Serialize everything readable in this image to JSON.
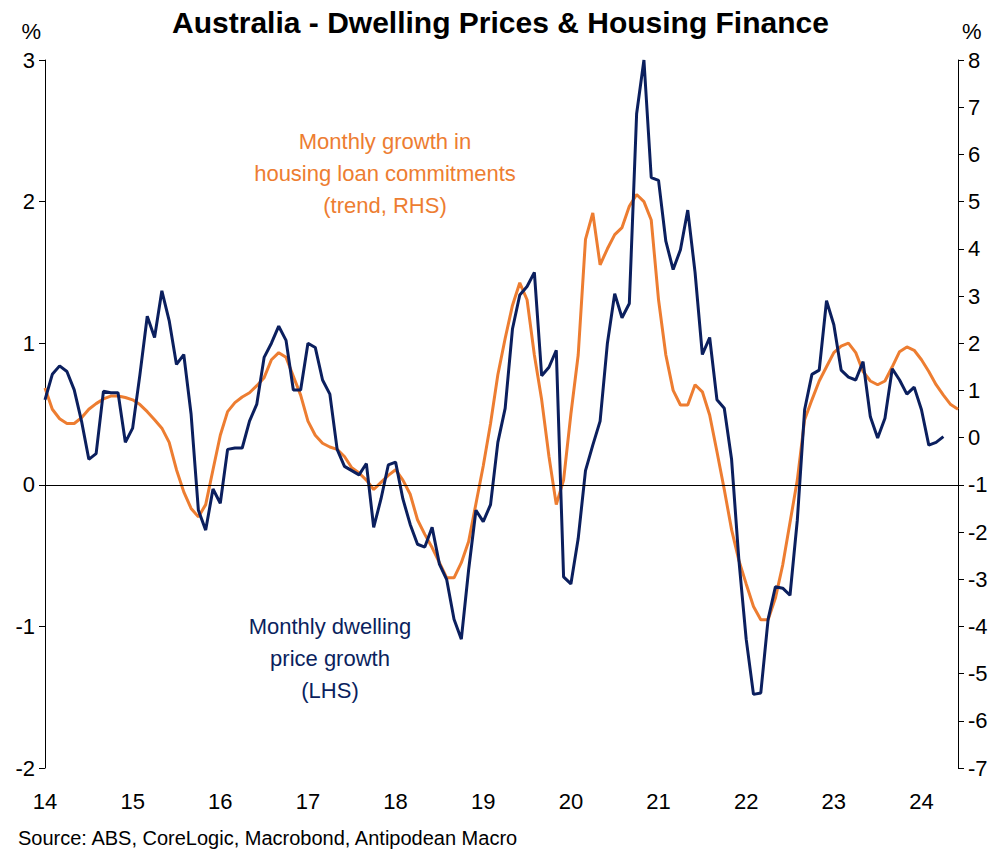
{
  "chart_data": {
    "type": "line",
    "title": "Australia - Dwelling Prices & Housing Finance",
    "source": "Source: ABS, CoreLogic, Macrobond, Antipodean Macro",
    "categories": [
      "14",
      null,
      null,
      null,
      null,
      null,
      null,
      null,
      null,
      null,
      null,
      null,
      "15",
      null,
      null,
      null,
      null,
      null,
      null,
      null,
      null,
      null,
      null,
      null,
      "16",
      null,
      null,
      null,
      null,
      null,
      null,
      null,
      null,
      null,
      null,
      null,
      "17",
      null,
      null,
      null,
      null,
      null,
      null,
      null,
      null,
      null,
      null,
      null,
      "18",
      null,
      null,
      null,
      null,
      null,
      null,
      null,
      null,
      null,
      null,
      null,
      "19",
      null,
      null,
      null,
      null,
      null,
      null,
      null,
      null,
      null,
      null,
      null,
      "20",
      null,
      null,
      null,
      null,
      null,
      null,
      null,
      null,
      null,
      null,
      null,
      "21",
      null,
      null,
      null,
      null,
      null,
      null,
      null,
      null,
      null,
      null,
      null,
      "22",
      null,
      null,
      null,
      null,
      null,
      null,
      null,
      null,
      null,
      null,
      null,
      "23",
      null,
      null,
      null,
      null,
      null,
      null,
      null,
      null,
      null,
      null,
      null,
      "24",
      null,
      null,
      null,
      null,
      null
    ],
    "series": [
      {
        "name": "Monthly dwelling\nprice growth\n(LHS)",
        "color": "#0b1f5e",
        "axis": "y",
        "values": [
          0.6,
          0.78,
          0.84,
          0.8,
          0.67,
          0.45,
          0.18,
          0.22,
          0.66,
          0.65,
          0.65,
          0.3,
          0.4,
          0.78,
          1.19,
          1.04,
          1.37,
          1.16,
          0.85,
          0.92,
          0.5,
          -0.18,
          -0.32,
          -0.03,
          -0.13,
          0.25,
          0.26,
          0.26,
          0.45,
          0.57,
          0.9,
          1.0,
          1.12,
          1.02,
          0.67,
          0.67,
          1.0,
          0.97,
          0.74,
          0.64,
          0.25,
          0.13,
          0.1,
          0.07,
          0.15,
          -0.3,
          -0.1,
          0.14,
          0.16,
          -0.1,
          -0.28,
          -0.42,
          -0.44,
          -0.3,
          -0.56,
          -0.67,
          -0.95,
          -1.09,
          -0.6,
          -0.18,
          -0.26,
          -0.14,
          0.3,
          0.54,
          1.1,
          1.34,
          1.4,
          1.5,
          0.77,
          0.83,
          0.95,
          -0.65,
          -0.7,
          -0.38,
          0.1,
          0.28,
          0.45,
          1.0,
          1.35,
          1.18,
          1.28,
          2.62,
          3.0,
          2.17,
          2.15,
          1.72,
          1.52,
          1.66,
          1.94,
          1.5,
          0.92,
          1.04,
          0.6,
          0.54,
          0.18,
          -0.53,
          -1.09,
          -1.48,
          -1.47,
          -0.95,
          -0.72,
          -0.73,
          -0.78,
          -0.25,
          0.53,
          0.78,
          0.81,
          1.3,
          1.13,
          0.81,
          0.76,
          0.74,
          0.87,
          0.48,
          0.33,
          0.47,
          0.82,
          0.74,
          0.64,
          0.69,
          0.53,
          0.28,
          0.3,
          0.34,
          null,
          null
        ]
      },
      {
        "name": "Monthly growth in\nhousing loan commitments\n(trend, RHS)",
        "color": "#ed7d31",
        "axis": "y2",
        "values": [
          1.05,
          0.6,
          0.4,
          0.3,
          0.3,
          0.42,
          0.6,
          0.72,
          0.82,
          0.88,
          0.88,
          0.85,
          0.8,
          0.7,
          0.55,
          0.38,
          0.2,
          -0.1,
          -0.68,
          -1.15,
          -1.5,
          -1.68,
          -1.42,
          -0.68,
          0.05,
          0.55,
          0.74,
          0.86,
          0.95,
          1.1,
          1.27,
          1.65,
          1.8,
          1.7,
          1.3,
          0.9,
          0.35,
          0.05,
          -0.12,
          -0.2,
          -0.25,
          -0.4,
          -0.64,
          -0.75,
          -0.9,
          -1.1,
          -0.95,
          -0.8,
          -0.68,
          -0.9,
          -1.2,
          -1.74,
          -2.05,
          -2.33,
          -2.65,
          -2.97,
          -2.97,
          -2.65,
          -2.2,
          -1.4,
          -0.6,
          0.3,
          1.33,
          2.1,
          2.8,
          3.28,
          2.92,
          1.75,
          0.8,
          -0.4,
          -1.42,
          -0.9,
          0.5,
          1.75,
          4.2,
          4.76,
          3.66,
          4.0,
          4.3,
          4.45,
          4.9,
          5.15,
          5.0,
          4.61,
          2.92,
          1.75,
          1.0,
          0.69,
          0.69,
          1.12,
          0.97,
          0.48,
          -0.3,
          -1.1,
          -1.95,
          -2.6,
          -3.1,
          -3.58,
          -3.86,
          -3.86,
          -3.4,
          -2.7,
          -1.8,
          -0.9,
          0.38,
          0.8,
          1.2,
          1.5,
          1.8,
          1.94,
          2.0,
          1.8,
          1.4,
          1.2,
          1.12,
          1.2,
          1.5,
          1.82,
          1.92,
          1.85,
          1.65,
          1.4,
          1.12,
          0.9,
          0.7,
          0.6
        ]
      }
    ],
    "y_label": "%",
    "y2_label": "%",
    "ylim": [
      -2,
      3
    ],
    "yticks": [
      -2,
      -1,
      0,
      1,
      2,
      3
    ],
    "y2lim": [
      -7,
      8
    ],
    "y2ticks": [
      -7,
      -6,
      -5,
      -4,
      -3,
      -2,
      -1,
      0,
      1,
      2,
      3,
      4,
      5,
      6,
      7,
      8
    ],
    "grid": false
  }
}
